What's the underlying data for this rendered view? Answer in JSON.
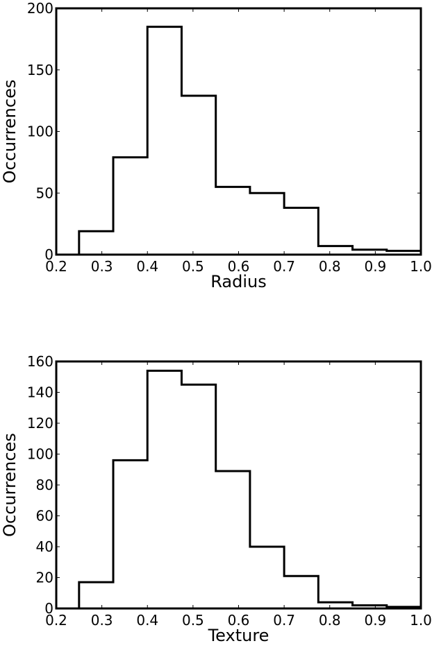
{
  "chart_data": [
    {
      "type": "histogram",
      "title": "",
      "xlabel": "Radius",
      "ylabel": "Occurrences",
      "xlim": [
        0.2,
        1.0
      ],
      "ylim": [
        0,
        200
      ],
      "xticks": [
        "0.2",
        "0.3",
        "0.4",
        "0.5",
        "0.6",
        "0.7",
        "0.8",
        "0.9",
        "1.0"
      ],
      "yticks": [
        "0",
        "50",
        "100",
        "150",
        "200"
      ],
      "grid": false,
      "legend": null,
      "bin_edges": [
        0.25,
        0.325,
        0.4,
        0.475,
        0.55,
        0.625,
        0.7,
        0.775,
        0.85,
        0.925,
        1.0
      ],
      "values": [
        19,
        79,
        185,
        129,
        55,
        50,
        38,
        7,
        4,
        3
      ],
      "color": "#000000"
    },
    {
      "type": "histogram",
      "title": "",
      "xlabel": "Texture",
      "ylabel": "Occurrences",
      "xlim": [
        0.2,
        1.0
      ],
      "ylim": [
        0,
        160
      ],
      "xticks": [
        "0.2",
        "0.3",
        "0.4",
        "0.5",
        "0.6",
        "0.7",
        "0.8",
        "0.9",
        "1.0"
      ],
      "yticks": [
        "0",
        "20",
        "40",
        "60",
        "80",
        "100",
        "120",
        "140",
        "160"
      ],
      "grid": false,
      "legend": null,
      "bin_edges": [
        0.25,
        0.325,
        0.4,
        0.475,
        0.55,
        0.625,
        0.7,
        0.775,
        0.85,
        0.925,
        1.0
      ],
      "values": [
        17,
        96,
        154,
        145,
        89,
        40,
        21,
        4,
        2,
        1
      ],
      "color": "#000000"
    }
  ]
}
